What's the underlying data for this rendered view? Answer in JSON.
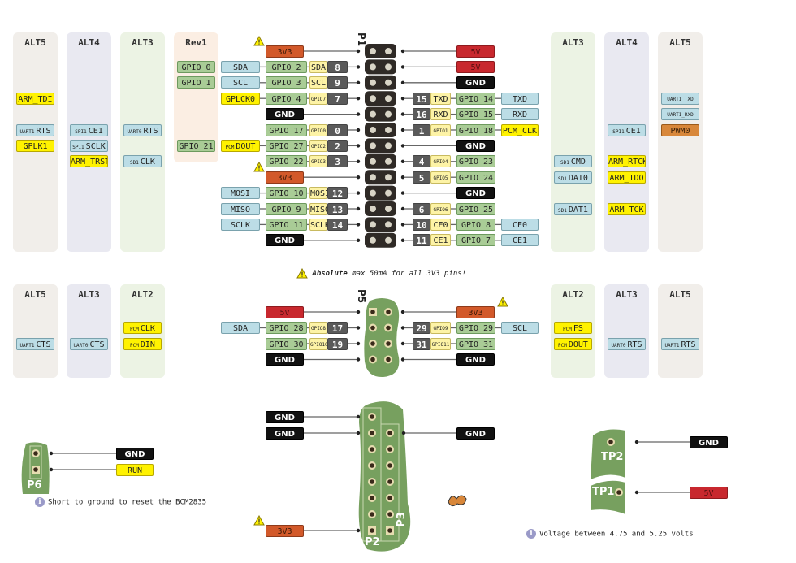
{
  "colors": {
    "gpio": "#a9cc96",
    "function": "#bcdde6",
    "special": "#fff200",
    "alt_gpio": "#fdf3a6",
    "pin_number": "#5a5a5a",
    "gnd": "#111111",
    "v5": "#c8282e",
    "v3v3": "#d2592a",
    "pwm": "#d8873a",
    "board": "#77a05f",
    "header": "#2f2a26"
  },
  "p1": {
    "name": "P1",
    "left_rows": [
      {
        "power": "3V3",
        "warn": true
      },
      {
        "pin": "8",
        "alt": "SDA",
        "gpio": "GPIO 2",
        "fn": "SDA"
      },
      {
        "pin": "9",
        "alt": "SCL",
        "gpio": "GPIO 3",
        "fn": "SCL"
      },
      {
        "pin": "7",
        "alt": "GPIO7",
        "gpio": "GPIO 4",
        "fn": "GPLCK0",
        "fn_color": "yellow"
      },
      {
        "power": "GND"
      },
      {
        "pin": "0",
        "alt": "GPIO0",
        "gpio": "GPIO 17"
      },
      {
        "pin": "2",
        "alt": "GPIO2",
        "gpio": "GPIO 27",
        "fn": "DOUT",
        "fn_pre": "PCM",
        "fn_color": "yellow"
      },
      {
        "pin": "3",
        "alt": "GPIO3",
        "gpio": "GPIO 22"
      },
      {
        "power": "3V3",
        "warn": true
      },
      {
        "pin": "12",
        "alt": "MOSI",
        "gpio": "GPIO 10",
        "fn": "MOSI"
      },
      {
        "pin": "13",
        "alt": "MISO",
        "gpio": "GPIO 9",
        "fn": "MISO"
      },
      {
        "pin": "14",
        "alt": "SCLK",
        "gpio": "GPIO 11",
        "fn": "SCLK"
      },
      {
        "power": "GND"
      }
    ],
    "right_rows": [
      {
        "power": "5V"
      },
      {
        "power": "5V"
      },
      {
        "power": "GND"
      },
      {
        "pin": "15",
        "alt": "TXD",
        "gpio": "GPIO 14",
        "fn": "TXD"
      },
      {
        "pin": "16",
        "alt": "RXD",
        "gpio": "GPIO 15",
        "fn": "RXD"
      },
      {
        "pin": "1",
        "alt": "GPIO1",
        "gpio": "GPIO 18",
        "fn": "PCM_CLK",
        "fn_color": "yellow"
      },
      {
        "power": "GND"
      },
      {
        "pin": "4",
        "alt": "GPIO4",
        "gpio": "GPIO 23"
      },
      {
        "pin": "5",
        "alt": "GPIO5",
        "gpio": "GPIO 24"
      },
      {
        "power": "GND"
      },
      {
        "pin": "6",
        "alt": "GPIO6",
        "gpio": "GPIO 25"
      },
      {
        "pin": "10",
        "alt": "CE0",
        "gpio": "GPIO 8",
        "fn": "CE0"
      },
      {
        "pin": "11",
        "alt": "CE1",
        "gpio": "GPIO 7",
        "fn": "CE1"
      }
    ],
    "left_columns": [
      {
        "title": "ALT5",
        "tint": "warm",
        "entries": [
          {
            "row": 3,
            "text": "ARM_TDI",
            "color": "yellow"
          },
          {
            "row": 5,
            "pre": "UART1",
            "text": "RTS",
            "color": "blue"
          },
          {
            "row": 6,
            "text": "GPLK1",
            "color": "yellow"
          }
        ]
      },
      {
        "title": "ALT4",
        "tint": "lavender",
        "entries": [
          {
            "row": 5,
            "pre": "SPI1",
            "text": "CE1",
            "color": "blue"
          },
          {
            "row": 6,
            "pre": "SPI1",
            "text": "SCLK",
            "color": "blue"
          },
          {
            "row": 7,
            "text": "ARM_TRST",
            "color": "yellow"
          }
        ]
      },
      {
        "title": "ALT3",
        "tint": "green",
        "entries": [
          {
            "row": 5,
            "pre": "UART0",
            "text": "RTS",
            "color": "blue"
          },
          {
            "row": 7,
            "pre": "SD1",
            "text": "CLK",
            "color": "blue"
          }
        ]
      },
      {
        "title": "Rev1",
        "tint": "peach",
        "short": true,
        "entries": [
          {
            "row": 1,
            "text": "GPIO 0",
            "color": "green"
          },
          {
            "row": 2,
            "text": "GPIO 1",
            "color": "green"
          },
          {
            "row": 6,
            "text": "GPIO 21",
            "color": "green"
          }
        ]
      }
    ],
    "right_columns": [
      {
        "title": "ALT3",
        "tint": "green",
        "entries": [
          {
            "row": 7,
            "pre": "SD1",
            "text": "CMD",
            "color": "blue"
          },
          {
            "row": 8,
            "pre": "SD1",
            "text": "DAT0",
            "color": "blue"
          },
          {
            "row": 10,
            "pre": "SD1",
            "text": "DAT1",
            "color": "blue"
          }
        ]
      },
      {
        "title": "ALT4",
        "tint": "lavender",
        "entries": [
          {
            "row": 5,
            "pre": "SPI1",
            "text": "CE1",
            "color": "blue"
          },
          {
            "row": 7,
            "text": "ARM_RTCK",
            "color": "yellow"
          },
          {
            "row": 8,
            "text": "ARM_TDO",
            "color": "yellow"
          },
          {
            "row": 10,
            "text": "ARM_TCK",
            "color": "yellow"
          }
        ]
      },
      {
        "title": "ALT5",
        "tint": "warm",
        "entries": [
          {
            "row": 3,
            "text": "UART1_TXD",
            "color": "blue"
          },
          {
            "row": 4,
            "text": "UART1_RXD",
            "color": "blue"
          },
          {
            "row": 5,
            "text": "PWM0",
            "color": "amber"
          }
        ]
      }
    ]
  },
  "warning_note": {
    "bold": "Absolute",
    "text": " max 50mA for all 3V3 pins!"
  },
  "p5": {
    "name": "P5",
    "left_rows": [
      {
        "power": "5V"
      },
      {
        "pin": "17",
        "alt": "GPIO8",
        "gpio": "GPIO 28",
        "fn": "SDA"
      },
      {
        "pin": "19",
        "alt": "GPIO10",
        "gpio": "GPIO 30"
      },
      {
        "power": "GND"
      }
    ],
    "right_rows": [
      {
        "power": "3V3",
        "warn": true
      },
      {
        "pin": "29",
        "alt": "GPIO9",
        "gpio": "GPIO 29",
        "fn": "SCL"
      },
      {
        "pin": "31",
        "alt": "GPIO11",
        "gpio": "GPIO 31"
      },
      {
        "power": "GND"
      }
    ],
    "left_columns": [
      {
        "title": "ALT5",
        "tint": "warm",
        "entries": [
          {
            "row": 2,
            "pre": "UART1",
            "text": "CTS",
            "color": "blue"
          }
        ]
      },
      {
        "title": "ALT3",
        "tint": "lavender",
        "entries": [
          {
            "row": 2,
            "pre": "UART0",
            "text": "CTS",
            "color": "blue"
          }
        ]
      },
      {
        "title": "ALT2",
        "tint": "green",
        "entries": [
          {
            "row": 1,
            "pre": "PCM",
            "text": "CLK",
            "color": "yellow"
          },
          {
            "row": 2,
            "pre": "PCM",
            "text": "DIN",
            "color": "yellow"
          }
        ]
      }
    ],
    "right_columns": [
      {
        "title": "ALT2",
        "tint": "green",
        "entries": [
          {
            "row": 1,
            "pre": "PCM",
            "text": "FS",
            "color": "yellow"
          },
          {
            "row": 2,
            "pre": "PCM",
            "text": "DOUT",
            "color": "yellow"
          }
        ]
      },
      {
        "title": "ALT3",
        "tint": "lavender",
        "entries": [
          {
            "row": 2,
            "pre": "UART0",
            "text": "RTS",
            "color": "blue"
          }
        ]
      },
      {
        "title": "ALT5",
        "tint": "warm",
        "entries": [
          {
            "row": 2,
            "pre": "UART1",
            "text": "RTS",
            "color": "blue"
          }
        ]
      }
    ]
  },
  "p2": {
    "name": "P2",
    "left": [
      {
        "row": 0,
        "power": "GND"
      },
      {
        "row": 1,
        "power": "GND"
      },
      {
        "row": 7,
        "power": "3V3",
        "warn": true
      }
    ]
  },
  "p3": {
    "name": "P3",
    "right": [
      {
        "row": 1,
        "power": "GND"
      }
    ]
  },
  "p6": {
    "name": "P6",
    "labels": [
      {
        "power": "GND"
      },
      {
        "power": "RUN",
        "color": "yellow"
      }
    ],
    "note": "Short to ground to reset the BCM2835"
  },
  "tp": {
    "tp2": {
      "name": "TP2",
      "power": "GND"
    },
    "tp1": {
      "name": "TP1",
      "power": "5V"
    },
    "note": "Voltage between 4.75 and 5.25 volts"
  }
}
